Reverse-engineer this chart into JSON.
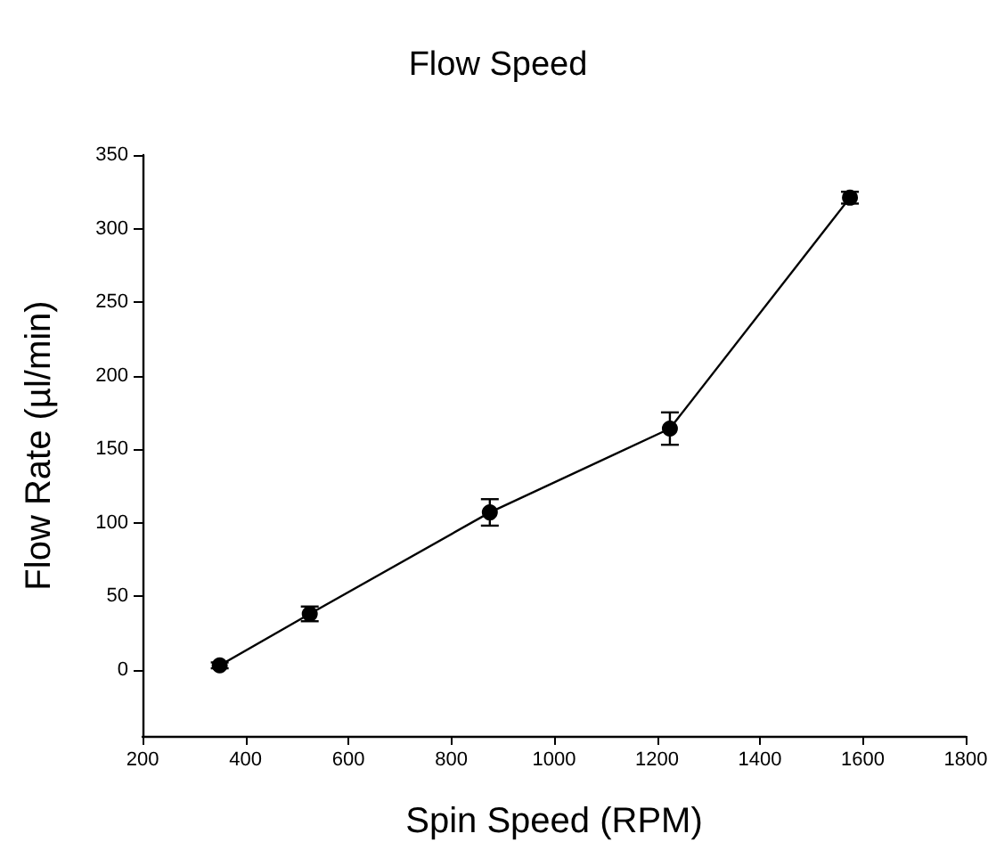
{
  "chart_data": {
    "type": "line",
    "title": "Flow Speed",
    "xlabel": "Spin Speed (RPM)",
    "ylabel": "Flow Rate (µl/min)",
    "x": [
      350,
      525,
      875,
      1225,
      1575
    ],
    "series": [
      {
        "color": "#000000",
        "values": [
          3,
          38,
          107,
          164,
          321
        ],
        "errors": [
          2,
          5,
          9,
          11,
          4
        ]
      }
    ],
    "xlim": [
      200,
      1800
    ],
    "xticks": [
      200,
      400,
      600,
      800,
      1000,
      1200,
      1400,
      1600,
      1800
    ],
    "ylim": [
      -45,
      350
    ],
    "yticks": [
      0,
      50,
      100,
      150,
      200,
      250,
      300,
      350
    ],
    "marker": "circle",
    "line_style": "solid"
  }
}
